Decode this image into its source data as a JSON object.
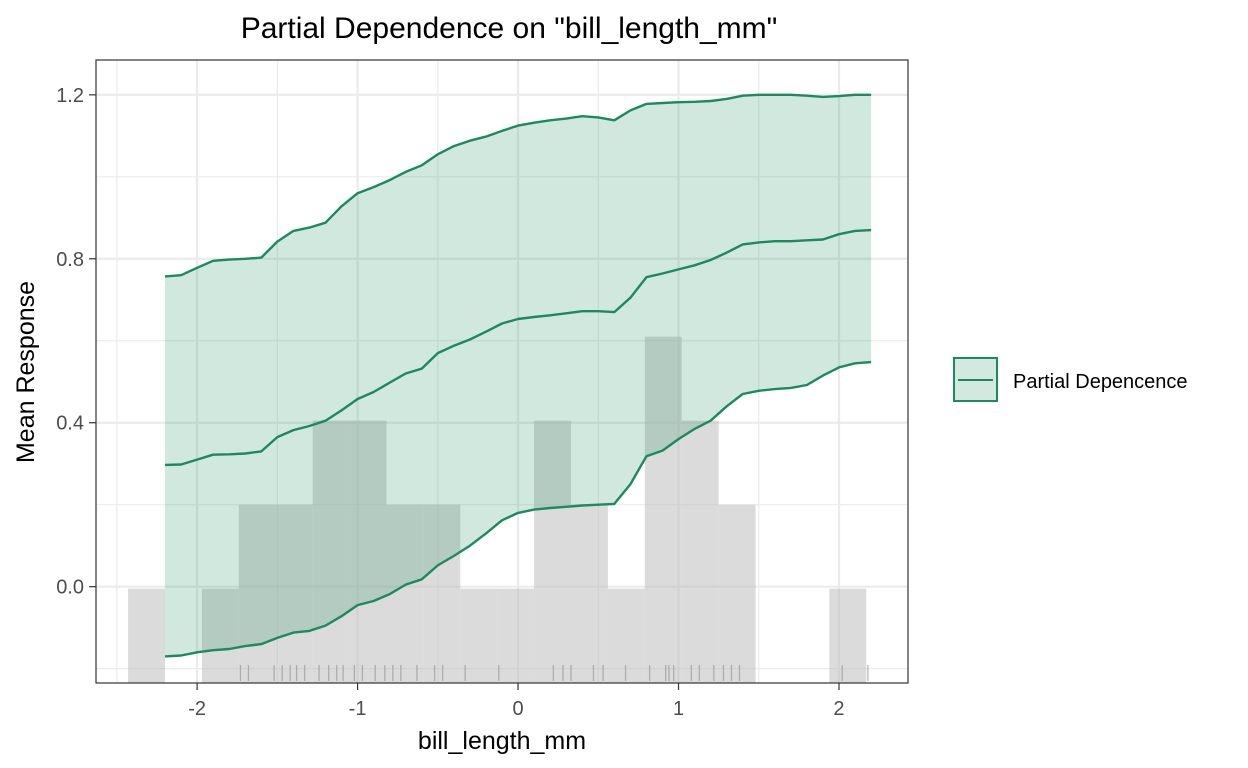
{
  "chart_data": {
    "type": "line",
    "title": "Partial Dependence on \"bill_length_mm\"",
    "xlabel": "bill_length_mm",
    "ylabel": "Mean Response",
    "xlim": [
      -2.63,
      2.43
    ],
    "ylim": [
      -0.235,
      1.285
    ],
    "x_ticks": [
      -2,
      -1,
      0,
      1,
      2
    ],
    "x_tick_labels": [
      "-2",
      "-1",
      "0",
      "1",
      "2"
    ],
    "y_ticks": [
      0.0,
      0.4,
      0.8,
      1.2
    ],
    "y_tick_labels": [
      "0.0",
      "0.4",
      "0.8",
      "1.2"
    ],
    "grid": true,
    "legend": {
      "position": "right",
      "entries": [
        "Partial Depencence"
      ]
    },
    "colors": {
      "line": "#1b8a5e",
      "ribbon": "#d3e9e0",
      "histogram": "#bdbdbd",
      "grid": "#ebebeb",
      "panel_border": "#333333"
    },
    "series": [
      {
        "name": "Partial Depencence",
        "x": [
          -2.2,
          -2.1,
          -2.0,
          -1.9,
          -1.8,
          -1.7,
          -1.6,
          -1.5,
          -1.4,
          -1.3,
          -1.2,
          -1.1,
          -1.0,
          -0.9,
          -0.8,
          -0.7,
          -0.6,
          -0.5,
          -0.4,
          -0.3,
          -0.2,
          -0.1,
          0.0,
          0.1,
          0.2,
          0.3,
          0.4,
          0.5,
          0.6,
          0.7,
          0.8,
          0.9,
          1.0,
          1.1,
          1.2,
          1.3,
          1.4,
          1.5,
          1.6,
          1.7,
          1.8,
          1.9,
          2.0,
          2.1,
          2.2
        ],
        "y": [
          0.297,
          0.298,
          0.31,
          0.322,
          0.323,
          0.325,
          0.33,
          0.365,
          0.382,
          0.392,
          0.405,
          0.43,
          0.458,
          0.475,
          0.498,
          0.52,
          0.532,
          0.57,
          0.588,
          0.603,
          0.622,
          0.642,
          0.653,
          0.658,
          0.662,
          0.667,
          0.672,
          0.672,
          0.67,
          0.705,
          0.755,
          0.764,
          0.774,
          0.784,
          0.797,
          0.815,
          0.835,
          0.84,
          0.843,
          0.843,
          0.845,
          0.847,
          0.86,
          0.868,
          0.87
        ],
        "lower": [
          -0.17,
          -0.168,
          -0.16,
          -0.155,
          -0.152,
          -0.145,
          -0.14,
          -0.125,
          -0.112,
          -0.108,
          -0.095,
          -0.072,
          -0.045,
          -0.035,
          -0.018,
          0.005,
          0.018,
          0.052,
          0.075,
          0.1,
          0.13,
          0.162,
          0.18,
          0.188,
          0.192,
          0.195,
          0.198,
          0.2,
          0.202,
          0.25,
          0.318,
          0.332,
          0.36,
          0.385,
          0.405,
          0.44,
          0.47,
          0.478,
          0.482,
          0.485,
          0.492,
          0.515,
          0.535,
          0.545,
          0.548
        ],
        "upper": [
          0.757,
          0.76,
          0.778,
          0.795,
          0.798,
          0.8,
          0.803,
          0.842,
          0.868,
          0.876,
          0.888,
          0.928,
          0.96,
          0.975,
          0.992,
          1.012,
          1.028,
          1.055,
          1.075,
          1.088,
          1.098,
          1.112,
          1.125,
          1.132,
          1.138,
          1.142,
          1.148,
          1.145,
          1.138,
          1.162,
          1.178,
          1.18,
          1.182,
          1.183,
          1.185,
          1.19,
          1.198,
          1.2,
          1.2,
          1.2,
          1.198,
          1.195,
          1.197,
          1.2,
          1.2
        ]
      }
    ],
    "histogram": {
      "bin_edges": [
        -2.43,
        -2.2,
        -1.97,
        -1.74,
        -1.51,
        -1.28,
        -1.05,
        -0.82,
        -0.59,
        -0.36,
        -0.13,
        0.1,
        0.33,
        0.56,
        0.79,
        1.02,
        1.25,
        1.48,
        1.71,
        1.94,
        2.17
      ],
      "counts": [
        1,
        0,
        1,
        2,
        2,
        3,
        3,
        2,
        2,
        1,
        1,
        3,
        2,
        1,
        4,
        3,
        2,
        0,
        0,
        1
      ],
      "scaled_y_per_count": 0.205,
      "baseline_y": -0.21
    },
    "rug_x": [
      -1.73,
      -1.68,
      -1.52,
      -1.47,
      -1.42,
      -1.38,
      -1.33,
      -1.24,
      -1.18,
      -1.13,
      -1.09,
      -1.02,
      -0.97,
      -0.89,
      -0.83,
      -0.78,
      -0.73,
      -0.63,
      -0.52,
      -0.47,
      -0.33,
      -0.12,
      0.22,
      0.28,
      0.33,
      0.47,
      0.53,
      0.67,
      0.82,
      0.92,
      0.94,
      0.97,
      1.08,
      1.13,
      1.22,
      1.28,
      1.33,
      1.38,
      2.02,
      2.18
    ]
  }
}
